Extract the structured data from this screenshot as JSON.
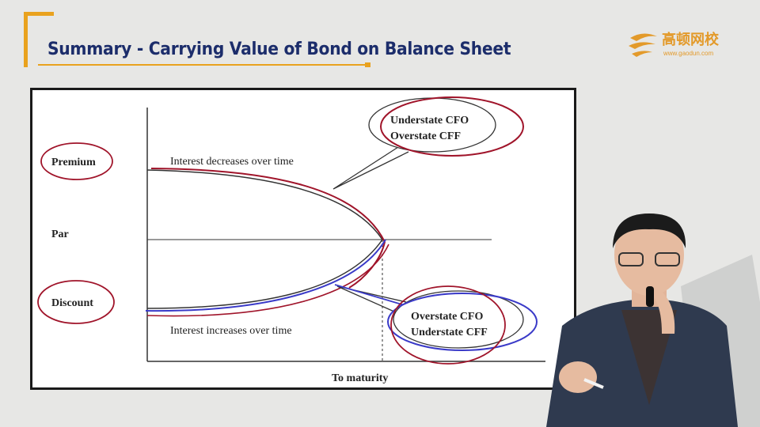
{
  "slide": {
    "title": "Summary - Carrying Value of Bond on Balance Sheet"
  },
  "logo": {
    "name": "高顿网校",
    "url": "www.gaodun.com"
  },
  "diagram": {
    "y_labels": {
      "premium": "Premium",
      "par": "Par",
      "discount": "Discount"
    },
    "x_label": "To maturity",
    "premium_curve_label": "Interest decreases over time",
    "discount_curve_label": "Interest increases over time",
    "premium_callout": {
      "line1": "Understate CFO",
      "line2": "Overstate CFF"
    },
    "discount_callout": {
      "line1": "Overstate CFO",
      "line2": "Understate CFF"
    }
  },
  "colors": {
    "title": "#1c2d6b",
    "accent": "#e9a21e",
    "annotation_red": "#a0142a",
    "annotation_blue": "#3a3ac8"
  }
}
